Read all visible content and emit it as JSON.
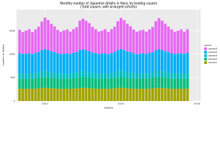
{
  "chart_data": {
    "type": "stacked-bar",
    "title": "Monthly number of Japanese deaths in Nara, by leading causes",
    "subtitle": "(Total causes, with arranged cohorts)",
    "x_label": "Months",
    "y_label": "number of deaths",
    "legend_title": "cause",
    "x": [
      2011.333,
      2011.417,
      2011.5,
      2011.583,
      2011.667,
      2011.75,
      2011.833,
      2011.917,
      2012,
      2012.083,
      2012.167,
      2012.25,
      2012.333,
      2012.417,
      2012.5,
      2012.583,
      2012.667,
      2012.75,
      2012.833,
      2012.917,
      2013,
      2013.083,
      2013.167,
      2013.25,
      2013.333,
      2013.417,
      2013.5,
      2013.583,
      2013.667,
      2013.75,
      2013.833,
      2013.917,
      2014,
      2014.083,
      2014.167,
      2014.25,
      2014.333,
      2014.417,
      2014.5,
      2014.583,
      2014.667,
      2014.75,
      2014.833,
      2014.917,
      2015,
      2015.083,
      2015.167,
      2015.25,
      2015.333,
      2015.417,
      2015.5,
      2015.583,
      2015.667,
      2015.75
    ],
    "series": [
      {
        "name": "cause1",
        "color": "#A3A500",
        "values": [
          266,
          262,
          264,
          266,
          262,
          268,
          272,
          280,
          285,
          280,
          274,
          270,
          266,
          262,
          264,
          266,
          262,
          268,
          272,
          280,
          283,
          279,
          275,
          269,
          265,
          263,
          263,
          267,
          261,
          267,
          273,
          281,
          286,
          281,
          273,
          271,
          266,
          261,
          264,
          265,
          262,
          268,
          271,
          279,
          284,
          280,
          274,
          270,
          266,
          262,
          264,
          266,
          262,
          268
        ]
      },
      {
        "name": "cause2",
        "color": "#00BF7D",
        "values": [
          214,
          210,
          212,
          214,
          210,
          216,
          220,
          228,
          232,
          228,
          222,
          218,
          214,
          210,
          212,
          214,
          210,
          216,
          220,
          228,
          231,
          227,
          223,
          217,
          215,
          211,
          211,
          215,
          209,
          215,
          221,
          229,
          233,
          228,
          221,
          219,
          214,
          209,
          212,
          213,
          210,
          216,
          219,
          227,
          232,
          228,
          222,
          218,
          214,
          210,
          212,
          214,
          210,
          216
        ]
      },
      {
        "name": "cause3",
        "color": "#00BFC4",
        "values": [
          114,
          110,
          112,
          114,
          110,
          116,
          120,
          128,
          130,
          126,
          122,
          118,
          114,
          110,
          112,
          114,
          110,
          116,
          120,
          128,
          129,
          125,
          123,
          117,
          115,
          111,
          111,
          115,
          109,
          115,
          121,
          129,
          131,
          126,
          121,
          119,
          114,
          109,
          112,
          113,
          110,
          116,
          119,
          127,
          130,
          126,
          122,
          118,
          114,
          110,
          112,
          114,
          110,
          116
        ]
      },
      {
        "name": "cause4",
        "color": "#00B0F6",
        "values": [
          428,
          420,
          425,
          428,
          420,
          427,
          434,
          450,
          462,
          455,
          444,
          437,
          426,
          422,
          424,
          428,
          420,
          428,
          432,
          452,
          458,
          452,
          446,
          435,
          428,
          420,
          425,
          426,
          422,
          426,
          434,
          450,
          460,
          454,
          445,
          436,
          427,
          421,
          424,
          427,
          421,
          427,
          433,
          451,
          461,
          453,
          444,
          437,
          426,
          421,
          423,
          428,
          421,
          427
        ]
      },
      {
        "name": "cause5",
        "color": "#E76BF3",
        "values": [
          500,
          470,
          490,
          510,
          470,
          500,
          540,
          610,
          670,
          640,
          585,
          550,
          500,
          475,
          495,
          505,
          480,
          505,
          530,
          625,
          655,
          630,
          595,
          545,
          510,
          480,
          490,
          510,
          475,
          510,
          535,
          615,
          665,
          635,
          590,
          550,
          505,
          478,
          492,
          502,
          478,
          500,
          538,
          620,
          660,
          628,
          588,
          545,
          508,
          475,
          490,
          508,
          476,
          505
        ]
      }
    ],
    "xlim": [
      2011.25,
      2016.1
    ],
    "xticks": [
      2012,
      2014,
      2016
    ],
    "ylim": [
      0,
      1950
    ],
    "yticks": [
      0,
      500,
      1000,
      1500
    ],
    "grid": true
  }
}
